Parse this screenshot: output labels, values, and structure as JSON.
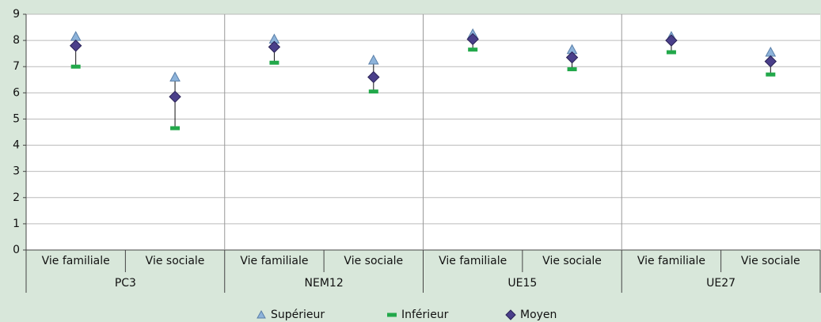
{
  "chart_data": {
    "type": "highlow",
    "categories": [
      "Vie familiale",
      "Vie sociale",
      "Vie familiale",
      "Vie sociale",
      "Vie familiale",
      "Vie sociale",
      "Vie familiale",
      "Vie sociale"
    ],
    "groups": [
      "PC3",
      "NEM12",
      "UE15",
      "UE27"
    ],
    "series": [
      {
        "name": "Supérieur",
        "color": "#8db3da",
        "marker": "triangle",
        "values": [
          8.15,
          6.6,
          8.05,
          7.25,
          8.25,
          7.65,
          8.15,
          7.55
        ]
      },
      {
        "name": "Inférieur",
        "color": "#22a84a",
        "marker": "dash",
        "values": [
          7.0,
          4.65,
          7.15,
          6.05,
          7.65,
          6.9,
          7.55,
          6.7
        ]
      },
      {
        "name": "Moyen",
        "color": "#4a3f8a",
        "marker": "diamond",
        "values": [
          7.8,
          5.85,
          7.75,
          6.6,
          8.05,
          7.35,
          8.0,
          7.2
        ]
      }
    ],
    "ylim": [
      0,
      9
    ],
    "yticks": [
      0,
      1,
      2,
      3,
      4,
      5,
      6,
      7,
      8,
      9
    ],
    "grid": true,
    "legend": "bottom"
  }
}
